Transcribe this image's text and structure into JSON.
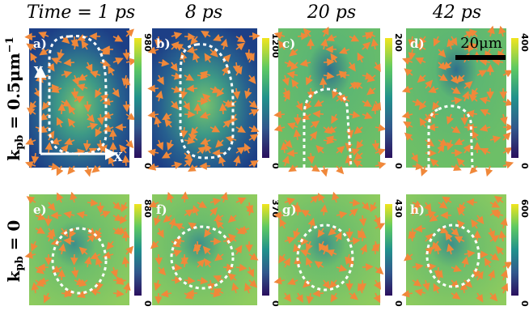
{
  "columns": [
    "Time = 1 ps",
    "8 ps",
    "20 ps",
    "42 ps"
  ],
  "rows": [
    {
      "symbol": "k",
      "subscript": "pb",
      "rest": " = 0.5μm",
      "superscript": "−1"
    },
    {
      "symbol": "k",
      "subscript": "pb",
      "rest": " = 0"
    }
  ],
  "axes": {
    "x": "X",
    "y": "Y"
  },
  "scale_bar": "20μm",
  "panels": [
    {
      "label": "a)",
      "colorbar": [
        "0",
        "980"
      ]
    },
    {
      "label": "b)",
      "colorbar": [
        "0",
        "1200"
      ]
    },
    {
      "label": "c)",
      "colorbar": [
        "0",
        "200"
      ]
    },
    {
      "label": "d)",
      "colorbar": [
        "0",
        "400"
      ]
    },
    {
      "label": "e)",
      "colorbar": [
        "0",
        "880"
      ]
    },
    {
      "label": "f)",
      "colorbar": [
        "0",
        "370"
      ]
    },
    {
      "label": "g)",
      "colorbar": [
        "0",
        "430"
      ]
    },
    {
      "label": "h)",
      "colorbar": [
        "0",
        "600"
      ]
    }
  ]
}
